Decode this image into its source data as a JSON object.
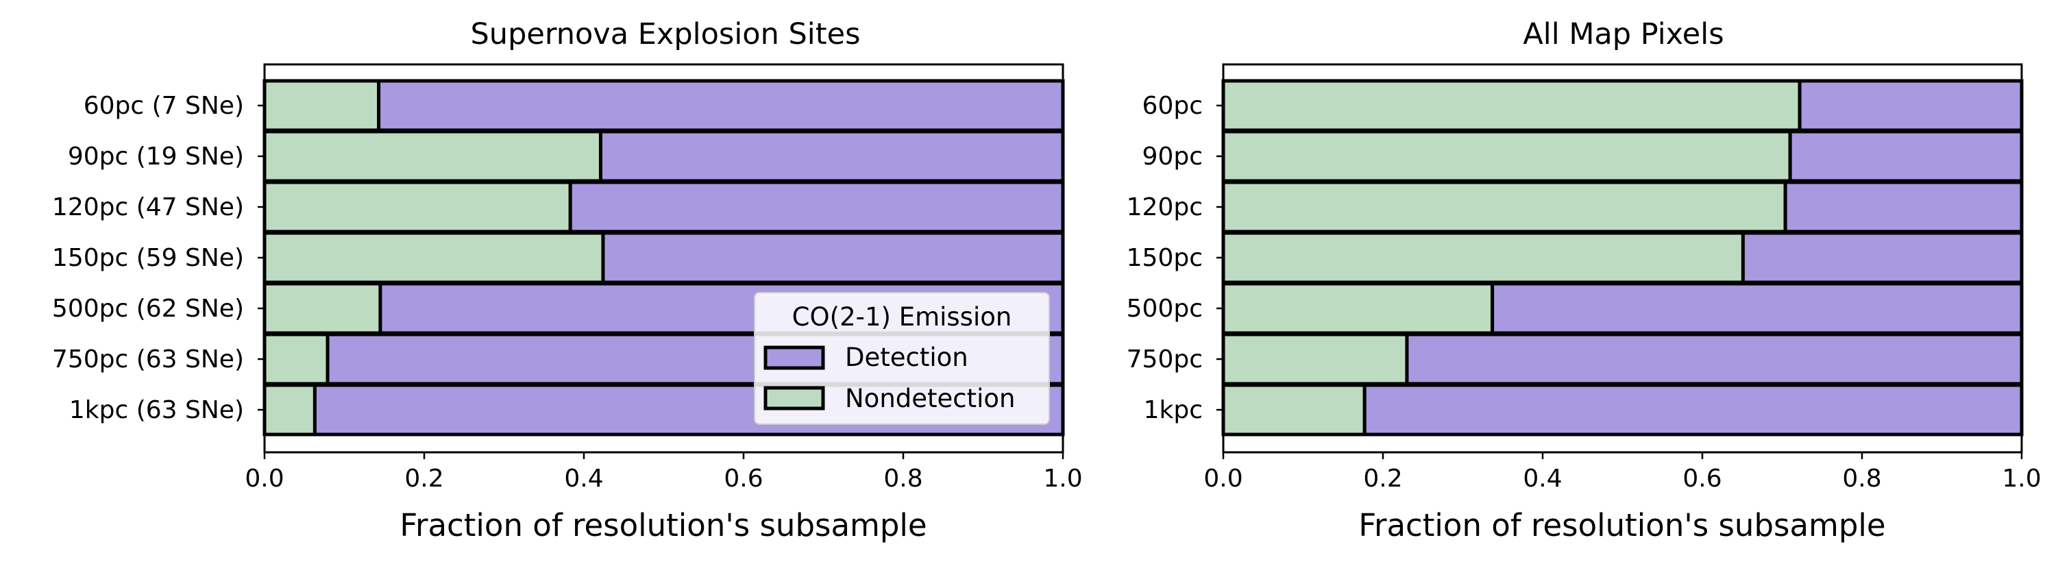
{
  "colors": {
    "detection": "#a899e0",
    "nondetection": "#bddbc1",
    "edge": "#000000"
  },
  "chart_data": [
    {
      "type": "bar",
      "orientation": "horizontal",
      "stacked": true,
      "title": "Supernova Explosion Sites",
      "xlabel": "Fraction of resolution's subsample",
      "ylabel": "",
      "xlim": [
        0,
        1
      ],
      "xticks": [
        "0.0",
        "0.2",
        "0.4",
        "0.6",
        "0.8",
        "1.0"
      ],
      "categories": [
        "60pc (7 SNe)",
        "90pc (19 SNe)",
        "120pc (47 SNe)",
        "150pc (59 SNe)",
        "500pc (62 SNe)",
        "750pc (63 SNe)",
        "1kpc (63 SNe)"
      ],
      "series": [
        {
          "name": "Nondetection",
          "values": [
            0.143,
            0.421,
            0.383,
            0.424,
            0.145,
            0.079,
            0.063
          ]
        },
        {
          "name": "Detection",
          "values": [
            0.857,
            0.579,
            0.617,
            0.576,
            0.855,
            0.921,
            0.937
          ]
        }
      ],
      "legend": {
        "title": "CO(2-1) Emission",
        "position": "lower-right",
        "entries": [
          "Detection",
          "Nondetection"
        ]
      }
    },
    {
      "type": "bar",
      "orientation": "horizontal",
      "stacked": true,
      "title": "All Map Pixels",
      "xlabel": "Fraction of resolution's subsample",
      "ylabel": "",
      "xlim": [
        0,
        1
      ],
      "xticks": [
        "0.0",
        "0.2",
        "0.4",
        "0.6",
        "0.8",
        "1.0"
      ],
      "categories": [
        "60pc",
        "90pc",
        "120pc",
        "150pc",
        "500pc",
        "750pc",
        "1kpc"
      ],
      "series": [
        {
          "name": "Nondetection",
          "values": [
            0.722,
            0.71,
            0.704,
            0.651,
            0.337,
            0.23,
            0.177
          ]
        },
        {
          "name": "Detection",
          "values": [
            0.278,
            0.29,
            0.296,
            0.349,
            0.663,
            0.77,
            0.823
          ]
        }
      ]
    }
  ]
}
